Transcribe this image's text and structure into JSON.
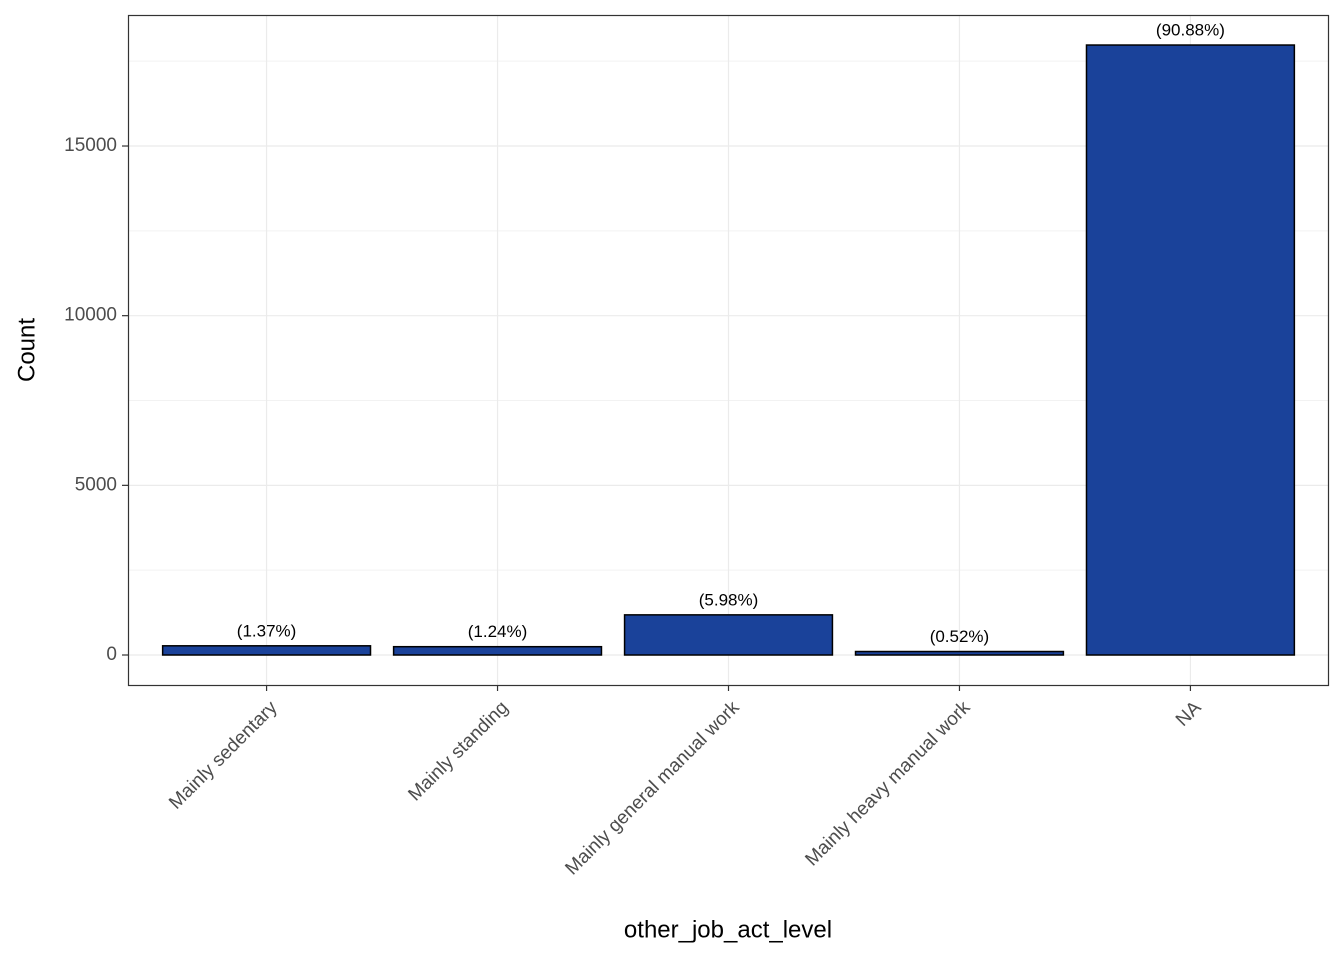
{
  "chart_data": {
    "type": "bar",
    "x_label": "other_job_act_level",
    "y_label": "Count",
    "categories": [
      "Mainly sedentary",
      "Mainly standing",
      "Mainly general manual work",
      "Mainly heavy manual work",
      "NA"
    ],
    "values": [
      271,
      245,
      1183,
      103,
      17976
    ],
    "bar_labels": [
      "(1.37%)",
      "(1.24%)",
      "(5.98%)",
      "(0.52%)",
      "(90.88%)"
    ],
    "color": "#1a429a",
    "ylim": [
      -884,
      18861
    ],
    "yticks": [
      0,
      5000,
      10000,
      15000
    ],
    "grid": true
  }
}
